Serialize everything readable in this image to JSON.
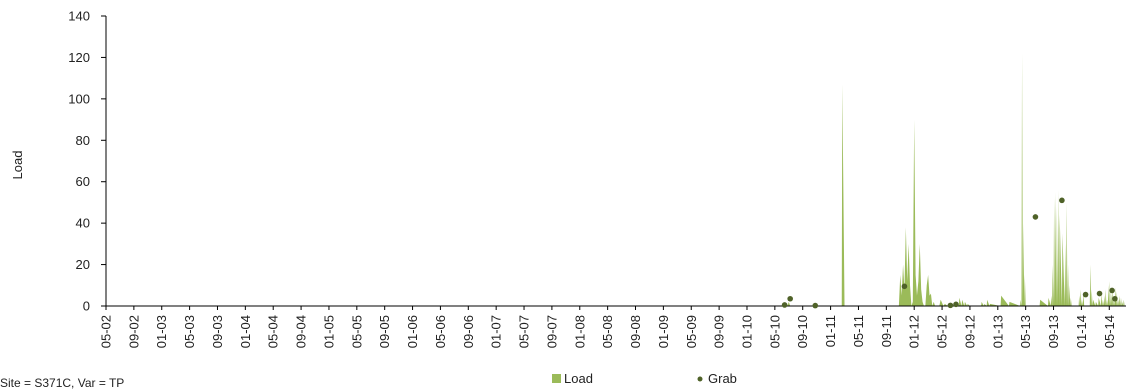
{
  "chart_data": {
    "type": "area",
    "title": "",
    "xlabel": "",
    "ylabel": "Load",
    "ylim": [
      0,
      140
    ],
    "yticks": [
      0,
      20,
      40,
      60,
      80,
      100,
      120,
      140
    ],
    "grid": false,
    "legend_position": "bottom-center",
    "colors": {
      "load": "#9bbb59",
      "grab": "#4f6228",
      "axis": "#000000"
    },
    "x_tick_labels": [
      "05-02",
      "09-02",
      "01-03",
      "05-03",
      "09-03",
      "01-04",
      "05-04",
      "09-04",
      "01-05",
      "05-05",
      "09-05",
      "01-06",
      "05-06",
      "09-06",
      "01-07",
      "05-07",
      "09-07",
      "01-08",
      "05-08",
      "09-08",
      "01-09",
      "05-09",
      "09-09",
      "01-10",
      "05-10",
      "09-10",
      "01-11",
      "05-11",
      "09-11",
      "01-12",
      "05-12",
      "09-12",
      "01-13",
      "05-13",
      "09-13",
      "01-14",
      "05-14"
    ],
    "footer_text": "Site = S371C, Var = TP",
    "series": [
      {
        "name": "Load",
        "kind": "area",
        "x": [
          0,
          0,
          24.35,
          24.4,
          24.45,
          24.5,
          24.55,
          24.6,
          26.4,
          26.42,
          26.5,
          26.52,
          28.45,
          28.5,
          28.55,
          28.6,
          28.65,
          28.7,
          28.75,
          28.8,
          28.85,
          28.9,
          28.95,
          29.0,
          29.05,
          29.1,
          29.15,
          29.2,
          29.25,
          29.3,
          29.35,
          29.4,
          29.45,
          29.5,
          29.55,
          29.6,
          29.65,
          29.7,
          29.75,
          29.85,
          29.9,
          29.95,
          30.05,
          30.1,
          30.2,
          30.6,
          30.62,
          30.7,
          30.72,
          30.8,
          30.82,
          30.9,
          30.92,
          31.0,
          31.02,
          31.4,
          31.42,
          31.5,
          31.52,
          31.6,
          31.62,
          31.7,
          31.72,
          32.1,
          32.12,
          32.4,
          32.42,
          32.8,
          32.82,
          32.85,
          32.87,
          32.9,
          32.92,
          32.95,
          32.97,
          33.0,
          33.02,
          33.5,
          33.52,
          33.8,
          33.82,
          33.9,
          33.92,
          33.95,
          33.97,
          34.0,
          34.02,
          34.05,
          34.07,
          34.1,
          34.12,
          34.15,
          34.17,
          34.2,
          34.22,
          34.3,
          34.32,
          34.4,
          34.42,
          34.45,
          34.47,
          34.5,
          34.52,
          34.55,
          34.57,
          34.6,
          34.62,
          34.65,
          34.67,
          34.9,
          34.92,
          34.95,
          34.97,
          35.0,
          35.02,
          35.05,
          35.07,
          35.1,
          35.12,
          35.3,
          35.32,
          35.35,
          35.37,
          35.4,
          35.42,
          35.5,
          35.52,
          35.6,
          35.62,
          35.7,
          35.72,
          35.75,
          35.77,
          35.8,
          35.82,
          35.85,
          35.87,
          35.9,
          35.92,
          35.95,
          35.97,
          36.0,
          36.02,
          36.05,
          36.07,
          36.1,
          36.12,
          36.15,
          36.17,
          36.2,
          36.22,
          36.25,
          36.27,
          36.3,
          36.32,
          36.35,
          36.37,
          36.4,
          36.42,
          36.45,
          36.47,
          36.5,
          36.52,
          36.55,
          36.6
        ],
        "y": [
          0,
          0,
          0,
          1,
          0,
          2,
          0,
          0,
          0,
          107,
          0,
          0,
          0,
          15,
          5,
          20,
          8,
          38,
          12,
          30,
          10,
          0,
          2,
          90,
          15,
          5,
          12,
          30,
          8,
          2,
          0,
          0,
          10,
          15,
          5,
          6,
          0,
          2,
          0,
          0,
          0,
          3,
          0,
          1,
          0,
          0,
          4,
          0,
          3,
          0,
          2,
          0,
          1,
          0,
          0,
          0,
          2,
          0,
          1,
          0,
          3,
          0,
          1,
          0,
          5,
          0,
          2,
          0,
          3,
          0,
          122,
          0,
          40,
          0,
          15,
          0,
          0,
          0,
          3,
          0,
          4,
          0,
          5,
          0,
          20,
          0,
          52,
          0,
          55,
          0,
          48,
          0,
          56,
          0,
          44,
          0,
          35,
          0,
          30,
          0,
          50,
          0,
          20,
          0,
          10,
          0,
          4,
          0,
          0,
          0,
          5,
          0,
          8,
          0,
          3,
          0,
          6,
          0,
          0,
          0,
          20,
          0,
          8,
          0,
          3,
          0,
          2,
          0,
          4,
          0,
          6,
          0,
          3,
          0,
          5,
          0,
          8,
          0,
          3,
          0,
          10,
          0,
          12,
          0,
          6,
          0,
          8,
          0,
          4,
          0,
          9,
          0,
          7,
          0,
          3,
          0,
          5,
          0,
          4,
          0,
          2,
          0,
          3,
          0,
          0
        ]
      },
      {
        "name": "Grab",
        "kind": "scatter",
        "x": [
          24.35,
          24.55,
          25.45,
          28.65,
          30.3,
          30.5,
          33.35,
          34.3,
          35.15,
          35.65,
          36.1,
          36.2
        ],
        "y": [
          0.5,
          3.5,
          0.2,
          9.5,
          0.3,
          0.8,
          43,
          51,
          5.5,
          6,
          7.5,
          3.5
        ]
      }
    ]
  }
}
